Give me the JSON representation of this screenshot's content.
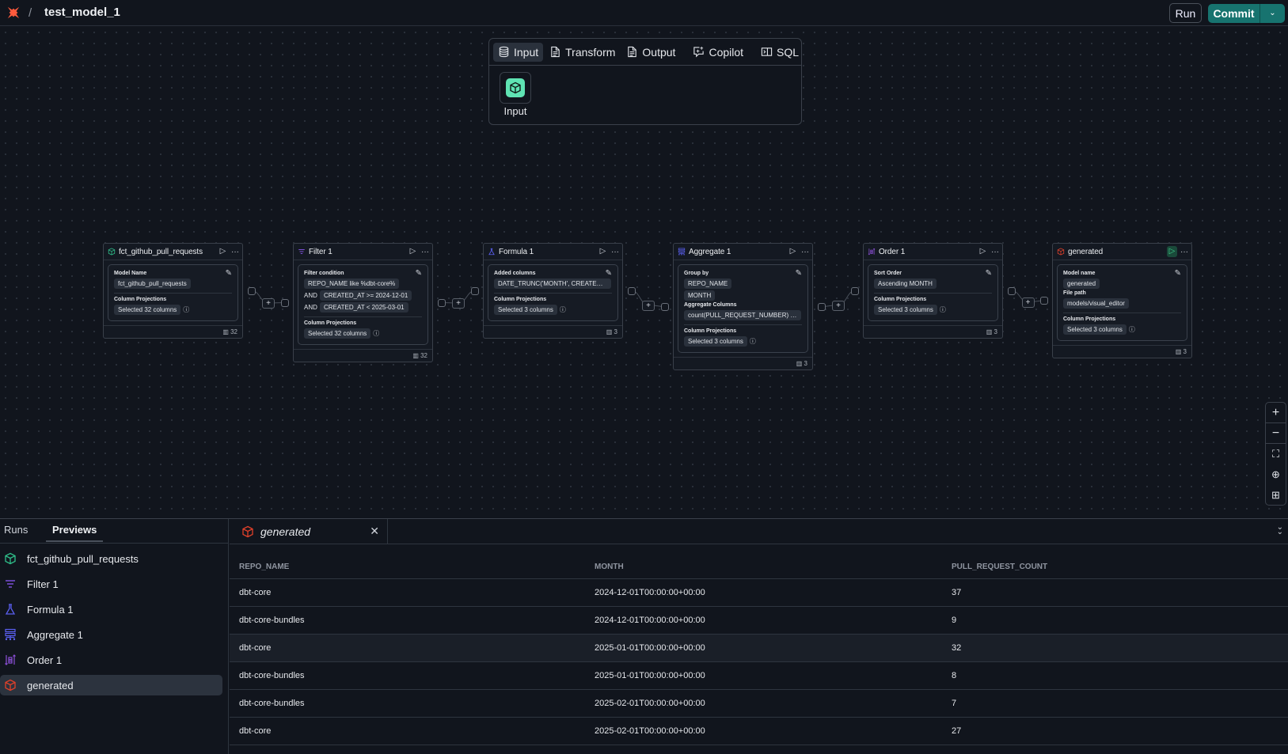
{
  "topbar": {
    "title": "test_model_1",
    "separator": "/",
    "run_label": "Run",
    "commit_label": "Commit",
    "brand_color": "#ff5a3c",
    "commit_color": "#17736f"
  },
  "palette": {
    "tabs": [
      {
        "label": "Input",
        "icon": "database-icon",
        "active": true
      },
      {
        "label": "Transform",
        "icon": "document-icon"
      },
      {
        "label": "Output",
        "icon": "document-icon"
      },
      {
        "label": "Copilot",
        "icon": "sparkle-chat-icon"
      },
      {
        "label": "SQL",
        "icon": "sql-panel-icon"
      }
    ],
    "tiles": [
      {
        "label": "Input",
        "icon": "cube-icon",
        "color": "#5fe3b3"
      }
    ]
  },
  "nodes": [
    {
      "title": "fct_github_pull_requests",
      "icon": "cube-icon",
      "color": "#2fbf8a",
      "sections": [
        {
          "label": "Model Name",
          "items": [
            {
              "text": "fct_github_pull_requests"
            }
          ]
        }
      ],
      "projections_label": "Column Projections",
      "projections": "Selected 32 columns",
      "count": "32"
    },
    {
      "title": "Filter 1",
      "icon": "filter-icon",
      "color": "#7b4fd6",
      "sections": [
        {
          "label": "Filter condition",
          "items": [
            {
              "text": "REPO_NAME like %dbt-core%"
            },
            {
              "prefix": "AND",
              "text": "CREATED_AT >= 2024-12-01"
            },
            {
              "prefix": "AND",
              "text": "CREATED_AT < 2025-03-01"
            }
          ]
        }
      ],
      "projections_label": "Column Projections",
      "projections": "Selected 32 columns",
      "count": "32"
    },
    {
      "title": "Formula 1",
      "icon": "flask-icon",
      "color": "#5a5ff0",
      "sections": [
        {
          "label": "Added columns",
          "items": [
            {
              "text": "DATE_TRUNC('MONTH', CREATED_AT..."
            }
          ]
        }
      ],
      "projections_label": "Column Projections",
      "projections": "Selected 3 columns",
      "count": "3"
    },
    {
      "title": "Aggregate 1",
      "icon": "hierarchy-icon",
      "color": "#5a5ff0",
      "sections": [
        {
          "label": "Group by",
          "items": [
            {
              "text": "REPO_NAME"
            },
            {
              "text": "MONTH"
            }
          ]
        },
        {
          "label": "Aggregate Columns",
          "items": [
            {
              "text": "count(PULL_REQUEST_NUMBER) as ..."
            }
          ]
        }
      ],
      "projections_label": "Column Projections",
      "projections": "Selected 3 columns",
      "count": "3"
    },
    {
      "title": "Order 1",
      "icon": "sort-icon",
      "color": "#8b4fd6",
      "sections": [
        {
          "label": "Sort Order",
          "items": [
            {
              "text": "Ascending MONTH"
            }
          ]
        }
      ],
      "projections_label": "Column Projections",
      "projections": "Selected 3 columns",
      "count": "3"
    },
    {
      "title": "generated",
      "icon": "cube-icon",
      "color": "#e0402a",
      "run_active": true,
      "sections": [
        {
          "label": "Model name",
          "items": [
            {
              "text": "generated"
            }
          ]
        },
        {
          "label": "File path",
          "items": [
            {
              "text": "models/visual_editor"
            }
          ]
        }
      ],
      "projections_label": "Column Projections",
      "projections": "Selected 3 columns",
      "count": "3"
    }
  ],
  "zoom_controls": [
    {
      "icon": "plus-icon",
      "glyph": "+"
    },
    {
      "icon": "minus-icon",
      "glyph": "−"
    },
    {
      "icon": "fit-view-icon",
      "glyph": "⛶"
    },
    {
      "icon": "target-icon",
      "glyph": "⊕"
    },
    {
      "icon": "grid-icon",
      "glyph": "⊞"
    }
  ],
  "bottom": {
    "tabs": [
      {
        "label": "Runs"
      },
      {
        "label": "Previews",
        "active": true
      }
    ],
    "items": [
      {
        "label": "fct_github_pull_requests",
        "icon": "cube-icon",
        "color": "#2fbf8a"
      },
      {
        "label": "Filter 1",
        "icon": "filter-icon",
        "color": "#7b4fd6"
      },
      {
        "label": "Formula 1",
        "icon": "flask-icon",
        "color": "#5a5ff0"
      },
      {
        "label": "Aggregate 1",
        "icon": "hierarchy-icon",
        "color": "#5a5ff0"
      },
      {
        "label": "Order 1",
        "icon": "sort-icon",
        "color": "#8b4fd6"
      },
      {
        "label": "generated",
        "icon": "cube-icon",
        "color": "#e0402a",
        "selected": true
      }
    ],
    "preview_tab": {
      "label": "generated",
      "icon": "cube-icon",
      "color": "#e0402a"
    },
    "table": {
      "columns": [
        "REPO_NAME",
        "MONTH",
        "PULL_REQUEST_COUNT"
      ],
      "rows": [
        [
          "dbt-core",
          "2024-12-01T00:00:00+00:00",
          "37"
        ],
        [
          "dbt-core-bundles",
          "2024-12-01T00:00:00+00:00",
          "9"
        ],
        [
          "dbt-core",
          "2025-01-01T00:00:00+00:00",
          "32"
        ],
        [
          "dbt-core-bundles",
          "2025-01-01T00:00:00+00:00",
          "8"
        ],
        [
          "dbt-core-bundles",
          "2025-02-01T00:00:00+00:00",
          "7"
        ],
        [
          "dbt-core",
          "2025-02-01T00:00:00+00:00",
          "27"
        ]
      ],
      "highlighted_row": 2
    }
  }
}
